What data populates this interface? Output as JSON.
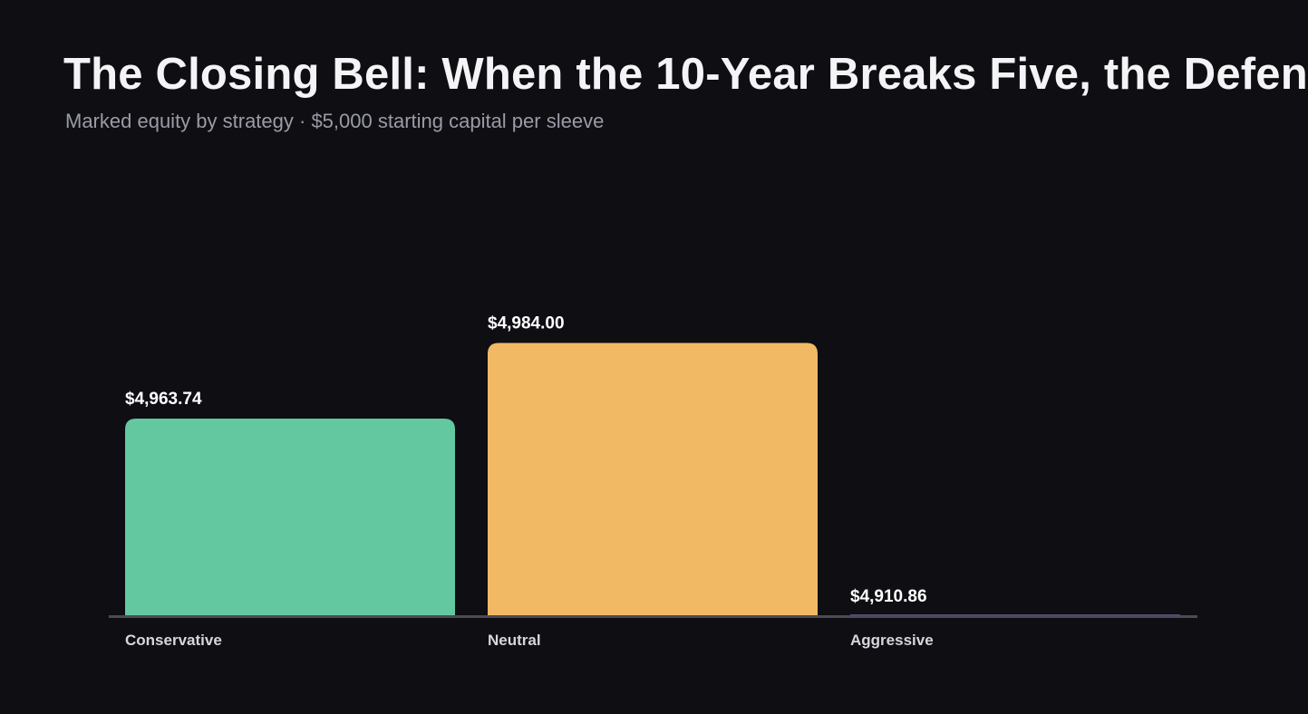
{
  "chart_data": {
    "type": "bar",
    "title": "The Closing Bell: When the 10-Year Breaks Five, the Defen",
    "subtitle": "Marked equity by strategy · $5,000 starting capital per sleeve",
    "categories": [
      "Conservative",
      "Neutral",
      "Aggressive"
    ],
    "values": [
      4963.74,
      4984.0,
      4910.86
    ],
    "value_labels": [
      "$4,963.74",
      "$4,984.00",
      "$4,910.86"
    ],
    "colors": [
      "#63c8a0",
      "#f2b965",
      "#a98be0"
    ],
    "xlabel": "",
    "ylabel": "",
    "ylim": [
      4910.86,
      5021.0
    ],
    "grid": false,
    "legend": "none"
  },
  "colors": {
    "background": "#0e0e13",
    "baseline": "#4a4b55",
    "title": "#f4f4f6",
    "subtitle": "#9a9ba6",
    "value_label": "#ffffff",
    "category_label": "#d6d7de"
  }
}
